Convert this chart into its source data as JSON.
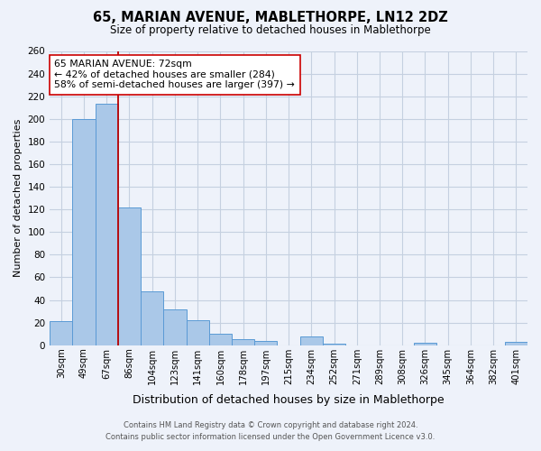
{
  "title": "65, MARIAN AVENUE, MABLETHORPE, LN12 2DZ",
  "subtitle": "Size of property relative to detached houses in Mablethorpe",
  "xlabel": "Distribution of detached houses by size in Mablethorpe",
  "ylabel": "Number of detached properties",
  "bin_labels": [
    "30sqm",
    "49sqm",
    "67sqm",
    "86sqm",
    "104sqm",
    "123sqm",
    "141sqm",
    "160sqm",
    "178sqm",
    "197sqm",
    "215sqm",
    "234sqm",
    "252sqm",
    "271sqm",
    "289sqm",
    "308sqm",
    "326sqm",
    "345sqm",
    "364sqm",
    "382sqm",
    "401sqm"
  ],
  "bar_values": [
    21,
    200,
    213,
    122,
    48,
    32,
    22,
    10,
    5,
    4,
    0,
    8,
    1,
    0,
    0,
    0,
    2,
    0,
    0,
    0,
    3
  ],
  "bar_color": "#aac8e8",
  "bar_edge_color": "#5a9ad5",
  "vline_x_idx": 2,
  "vline_color": "#bb0000",
  "annotation_title": "65 MARIAN AVENUE: 72sqm",
  "annotation_line1": "← 42% of detached houses are smaller (284)",
  "annotation_line2": "58% of semi-detached houses are larger (397) →",
  "annotation_box_color": "#ffffff",
  "annotation_box_edge": "#cc0000",
  "ylim_max": 260,
  "ytick_step": 20,
  "footer_line1": "Contains HM Land Registry data © Crown copyright and database right 2024.",
  "footer_line2": "Contains public sector information licensed under the Open Government Licence v3.0.",
  "bg_color": "#eef2fa",
  "plot_bg_color": "#eef2fa",
  "grid_color": "#c5d0e0"
}
